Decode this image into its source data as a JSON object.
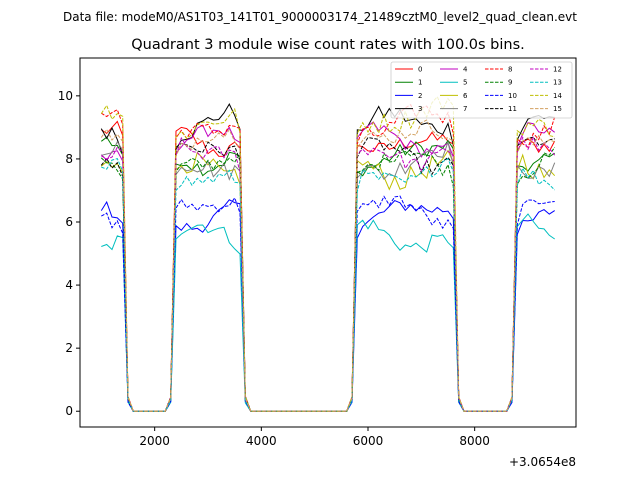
{
  "chart_data": {
    "type": "line",
    "suptitle": "Data file: modeM0/AS1T03_141T01_9000003174_21489cztM0_level2_quad_clean.evt",
    "title": "Quadrant 3 module wise count rates with 100.0s bins.",
    "xlabel": "",
    "ylabel": "",
    "x_offset_label": "+3.0654e8",
    "xlim": [
      600,
      9900
    ],
    "ylim": [
      -0.5,
      11.2
    ],
    "xticks": [
      2000,
      4000,
      6000,
      8000
    ],
    "yticks": [
      0,
      2,
      4,
      6,
      8,
      10
    ],
    "legend_position": "upper right",
    "legend_columns": 4,
    "x_start": 1000,
    "x_step": 100,
    "n_points": 86,
    "gaps": [
      [
        1600,
        2200
      ],
      [
        3800,
        5600
      ],
      [
        7800,
        8600
      ]
    ],
    "series": [
      {
        "name": "0",
        "color": "#ff0000",
        "dash": "solid",
        "base": 8.7,
        "amp": 0.25
      },
      {
        "name": "1",
        "color": "#008000",
        "dash": "solid",
        "base": 8.2,
        "amp": 0.25
      },
      {
        "name": "2",
        "color": "#0000ff",
        "dash": "solid",
        "base": 6.2,
        "amp": 0.22
      },
      {
        "name": "3",
        "color": "#000000",
        "dash": "solid",
        "base": 9.0,
        "amp": 0.28
      },
      {
        "name": "4",
        "color": "#c000c0",
        "dash": "solid",
        "base": 8.5,
        "amp": 0.22
      },
      {
        "name": "5",
        "color": "#00bfbf",
        "dash": "solid",
        "base": 5.6,
        "amp": 0.25
      },
      {
        "name": "6",
        "color": "#bfbf00",
        "dash": "solid",
        "base": 7.8,
        "amp": 0.35
      },
      {
        "name": "7",
        "color": "#808080",
        "dash": "solid",
        "base": 8.0,
        "amp": 0.3
      },
      {
        "name": "8",
        "color": "#ff0000",
        "dash": "dashed",
        "base": 9.1,
        "amp": 0.28
      },
      {
        "name": "9",
        "color": "#008000",
        "dash": "dashed",
        "base": 7.8,
        "amp": 0.25
      },
      {
        "name": "10",
        "color": "#0000ff",
        "dash": "dashed",
        "base": 6.3,
        "amp": 0.22
      },
      {
        "name": "11",
        "color": "#000000",
        "dash": "dashed",
        "base": 8.2,
        "amp": 0.25
      },
      {
        "name": "12",
        "color": "#c000c0",
        "dash": "dashed",
        "base": 8.3,
        "amp": 0.25
      },
      {
        "name": "13",
        "color": "#00bfbf",
        "dash": "dashed",
        "base": 7.6,
        "amp": 0.25
      },
      {
        "name": "14",
        "color": "#bfbf00",
        "dash": "dashed",
        "base": 9.3,
        "amp": 0.35
      },
      {
        "name": "15",
        "color": "#d2a060",
        "dash": "dashed",
        "base": 8.6,
        "amp": 0.25
      }
    ]
  }
}
